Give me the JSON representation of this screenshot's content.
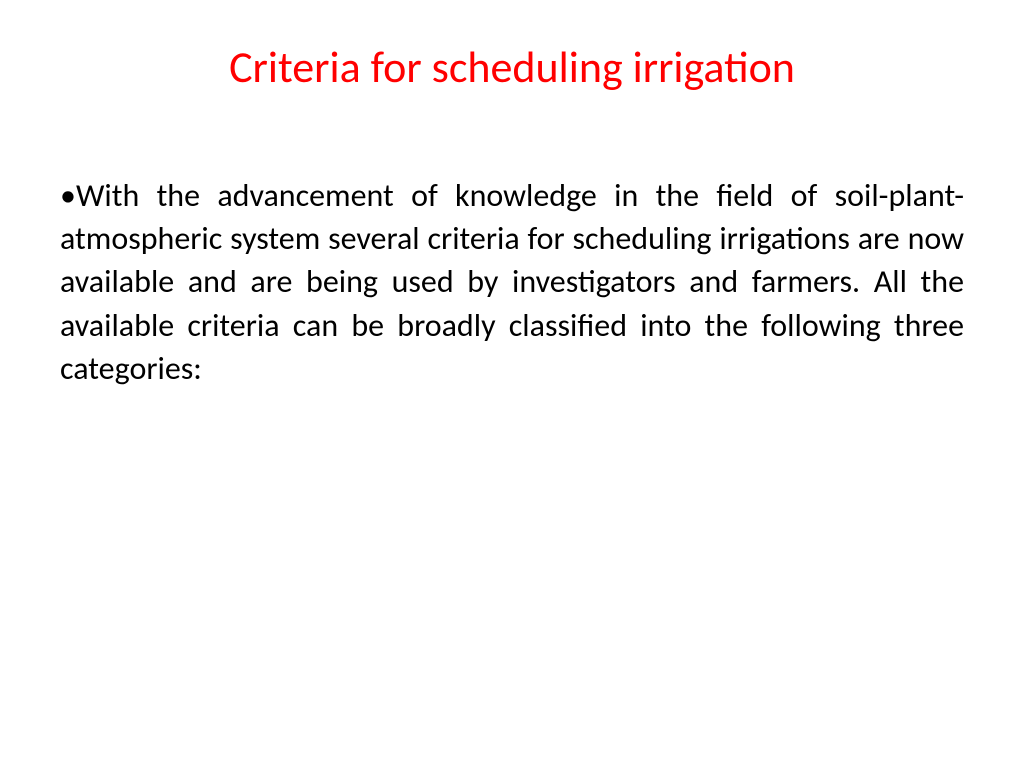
{
  "title": {
    "text": "Criteria for scheduling irrigation",
    "color": "#ff0000",
    "fontsize": 44
  },
  "content": {
    "bullet_char": "•",
    "text": "With the advancement of knowledge in the field of soil-plant-atmospheric system several criteria for scheduling irrigations are now available and are being used by investigators and farmers. All the available criteria can be broadly classified into the following three categories:",
    "color": "#000000",
    "fontsize": 32
  },
  "background_color": "#ffffff"
}
